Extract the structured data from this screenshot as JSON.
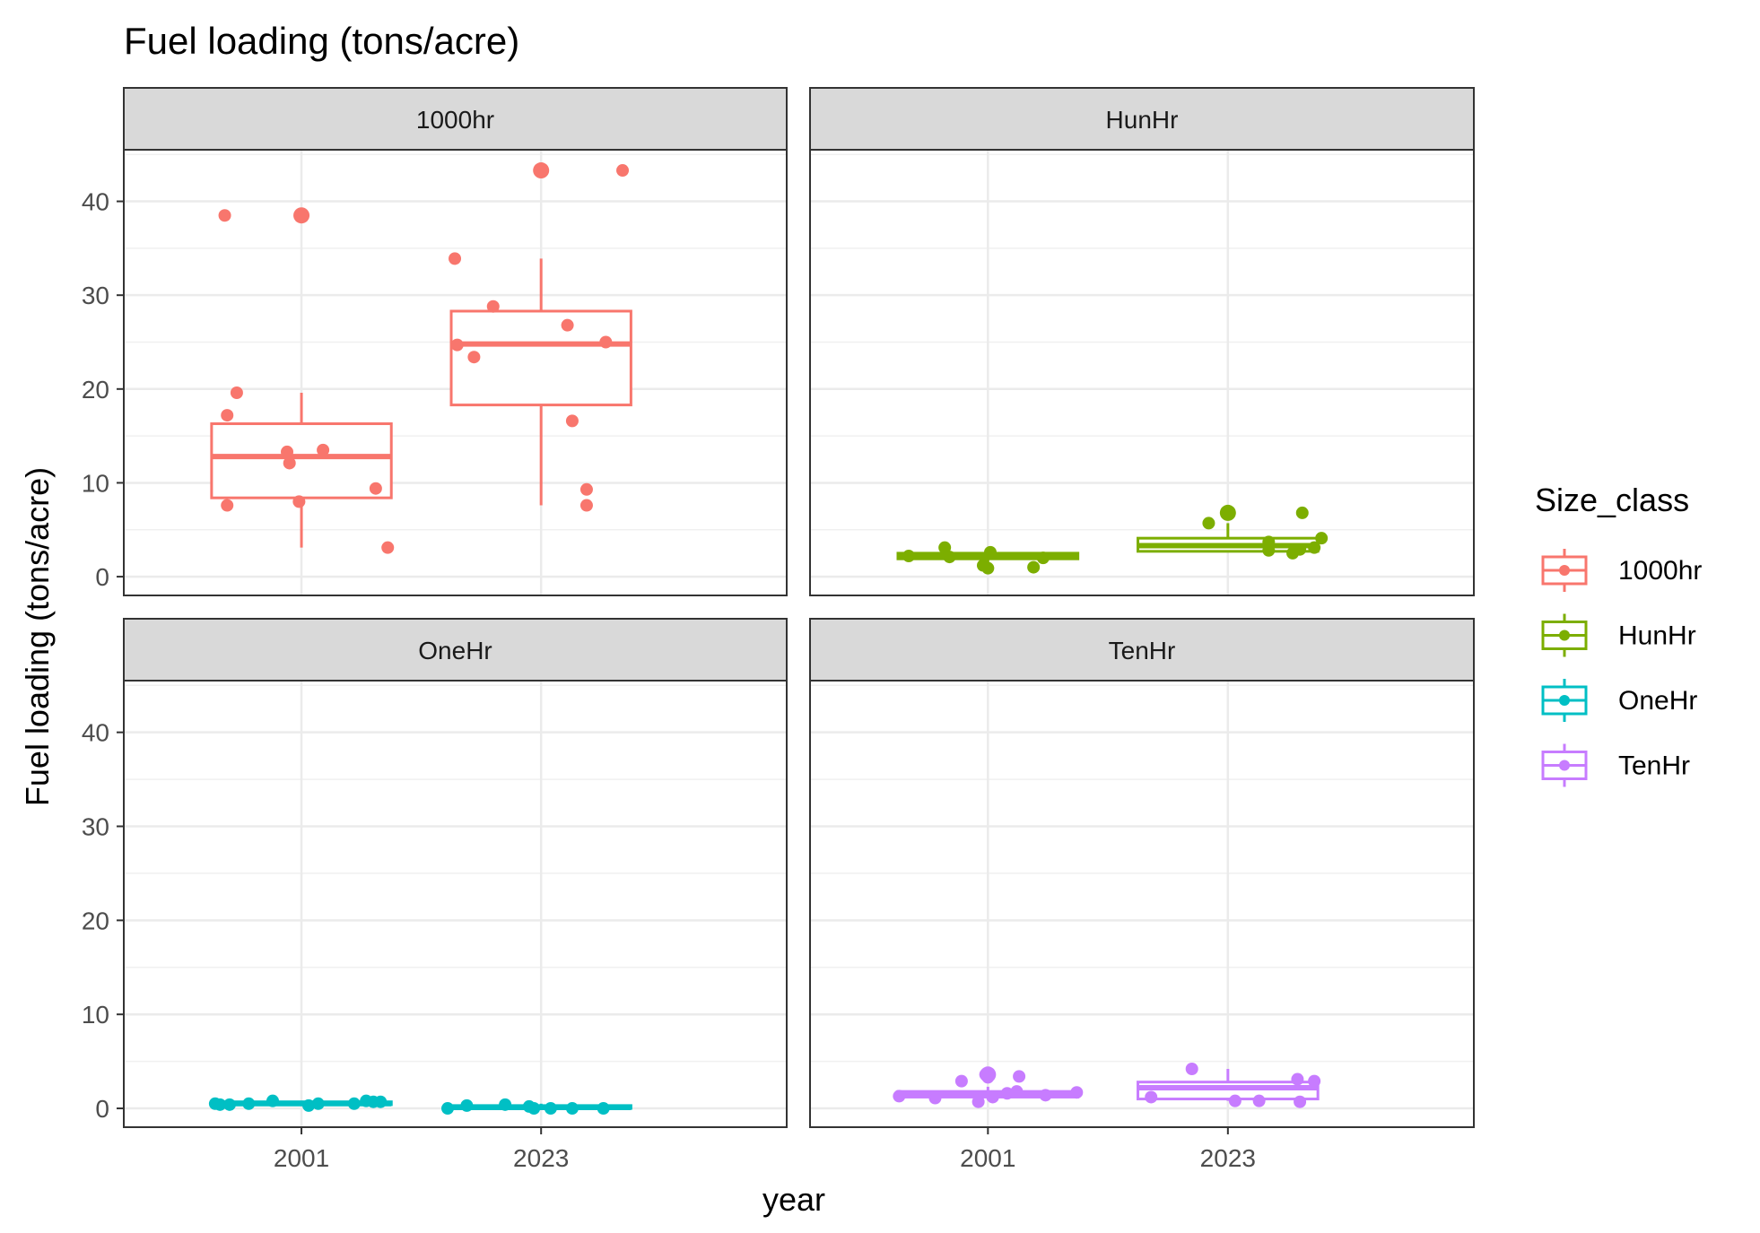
{
  "chart_data": {
    "type": "box",
    "title": "Fuel loading (tons/acre)",
    "xlabel": "year",
    "ylabel": "Fuel loading (tons/acre)",
    "categories": [
      "2001",
      "2023"
    ],
    "ylim": [
      -2,
      45.5
    ],
    "yticks": [
      0,
      10,
      20,
      30,
      40
    ],
    "grid": true,
    "legend": {
      "title": "Size_class",
      "position": "right",
      "entries": [
        "1000hr",
        "HunHr",
        "OneHr",
        "TenHr"
      ]
    },
    "facet_layout": "2x2",
    "series": [
      {
        "name": "1000hr",
        "color": "#F8766D",
        "boxes": {
          "2001": {
            "q1": 8.4,
            "median": 12.8,
            "q3": 16.3,
            "whisker_low": 3.1,
            "whisker_high": 19.6
          },
          "2023": {
            "q1": 18.3,
            "median": 24.8,
            "q3": 28.3,
            "whisker_low": 7.6,
            "whisker_high": 33.9
          }
        },
        "outliers": {
          "2001": [
            38.5
          ],
          "2023": [
            43.3
          ]
        },
        "points": {
          "2001": [
            [
              -0.32,
              38.5
            ],
            [
              -0.31,
              7.6
            ],
            [
              -0.31,
              17.2
            ],
            [
              -0.27,
              19.6
            ],
            [
              -0.06,
              13.3
            ],
            [
              -0.05,
              12.1
            ],
            [
              -0.01,
              8.0
            ],
            [
              0.09,
              13.5
            ],
            [
              0.31,
              9.4
            ],
            [
              0.36,
              3.1
            ]
          ],
          "2023": [
            [
              -0.36,
              33.9
            ],
            [
              -0.35,
              24.7
            ],
            [
              -0.28,
              23.4
            ],
            [
              -0.2,
              28.8
            ],
            [
              0.11,
              26.8
            ],
            [
              0.13,
              16.6
            ],
            [
              0.19,
              7.6
            ],
            [
              0.19,
              9.3
            ],
            [
              0.27,
              25.0
            ],
            [
              0.34,
              43.3
            ]
          ]
        }
      },
      {
        "name": "HunHr",
        "color": "#7CAE00",
        "boxes": {
          "2001": {
            "q1": 1.9,
            "median": 2.2,
            "q3": 2.5,
            "whisker_low": 0.9,
            "whisker_high": 3.1
          },
          "2023": {
            "q1": 2.7,
            "median": 3.3,
            "q3": 4.1,
            "whisker_low": 2.6,
            "whisker_high": 5.7
          }
        },
        "outliers": {
          "2001": [],
          "2023": [
            6.8
          ]
        },
        "points": {
          "2001": [
            [
              -0.33,
              2.2
            ],
            [
              -0.18,
              3.1
            ],
            [
              -0.16,
              2.1
            ],
            [
              -0.02,
              1.2
            ],
            [
              0.0,
              0.9
            ],
            [
              0.01,
              2.6
            ],
            [
              0.19,
              1.0
            ],
            [
              0.23,
              2.0
            ]
          ],
          "2023": [
            [
              -0.08,
              5.7
            ],
            [
              0.17,
              3.7
            ],
            [
              0.17,
              2.8
            ],
            [
              0.27,
              2.5
            ],
            [
              0.3,
              2.9
            ],
            [
              0.31,
              6.8
            ],
            [
              0.36,
              3.1
            ],
            [
              0.39,
              4.1
            ]
          ]
        }
      },
      {
        "name": "OneHr",
        "color": "#00BFC4",
        "boxes": {
          "2001": {
            "q1": 0.4,
            "median": 0.5,
            "q3": 0.7,
            "whisker_low": 0.3,
            "whisker_high": 0.8
          },
          "2023": {
            "q1": 0.0,
            "median": 0.1,
            "q3": 0.3,
            "whisker_low": -0.1,
            "whisker_high": 0.5
          }
        },
        "outliers": {
          "2001": [],
          "2023": []
        },
        "points": {
          "2001": [
            [
              -0.36,
              0.5
            ],
            [
              -0.34,
              0.4
            ],
            [
              -0.3,
              0.4
            ],
            [
              -0.22,
              0.5
            ],
            [
              -0.12,
              0.8
            ],
            [
              0.03,
              0.3
            ],
            [
              0.07,
              0.5
            ],
            [
              0.22,
              0.5
            ],
            [
              0.27,
              0.8
            ],
            [
              0.3,
              0.7
            ],
            [
              0.33,
              0.7
            ]
          ],
          "2023": [
            [
              -0.39,
              0.0
            ],
            [
              -0.31,
              0.3
            ],
            [
              -0.15,
              0.4
            ],
            [
              -0.05,
              0.2
            ],
            [
              -0.03,
              0.0
            ],
            [
              0.04,
              0.0
            ],
            [
              0.13,
              0.0
            ],
            [
              0.26,
              0.0
            ]
          ]
        }
      },
      {
        "name": "TenHr",
        "color": "#C77CFF",
        "boxes": {
          "2001": {
            "q1": 1.2,
            "median": 1.5,
            "q3": 1.8,
            "whisker_low": 0.9,
            "whisker_high": 2.3
          },
          "2023": {
            "q1": 1.0,
            "median": 2.2,
            "q3": 2.8,
            "whisker_low": 0.8,
            "whisker_high": 4.2
          }
        },
        "outliers": {
          "2001": [
            3.6
          ],
          "2023": []
        },
        "points": {
          "2001": [
            [
              -0.37,
              1.3
            ],
            [
              -0.22,
              1.1
            ],
            [
              -0.11,
              2.9
            ],
            [
              -0.04,
              0.7
            ],
            [
              -0.01,
              3.6
            ],
            [
              0.0,
              3.3
            ],
            [
              0.02,
              1.2
            ],
            [
              0.08,
              1.6
            ],
            [
              0.12,
              1.8
            ],
            [
              0.13,
              3.4
            ],
            [
              0.24,
              1.4
            ],
            [
              0.37,
              1.7
            ]
          ],
          "2023": [
            [
              -0.32,
              1.2
            ],
            [
              -0.15,
              4.2
            ],
            [
              0.03,
              0.8
            ],
            [
              0.13,
              0.8
            ],
            [
              0.29,
              3.1
            ],
            [
              0.3,
              0.7
            ],
            [
              0.36,
              2.9
            ]
          ]
        }
      }
    ]
  },
  "facets": [
    {
      "label": "1000hr"
    },
    {
      "label": "HunHr"
    },
    {
      "label": "OneHr"
    },
    {
      "label": "TenHr"
    }
  ]
}
